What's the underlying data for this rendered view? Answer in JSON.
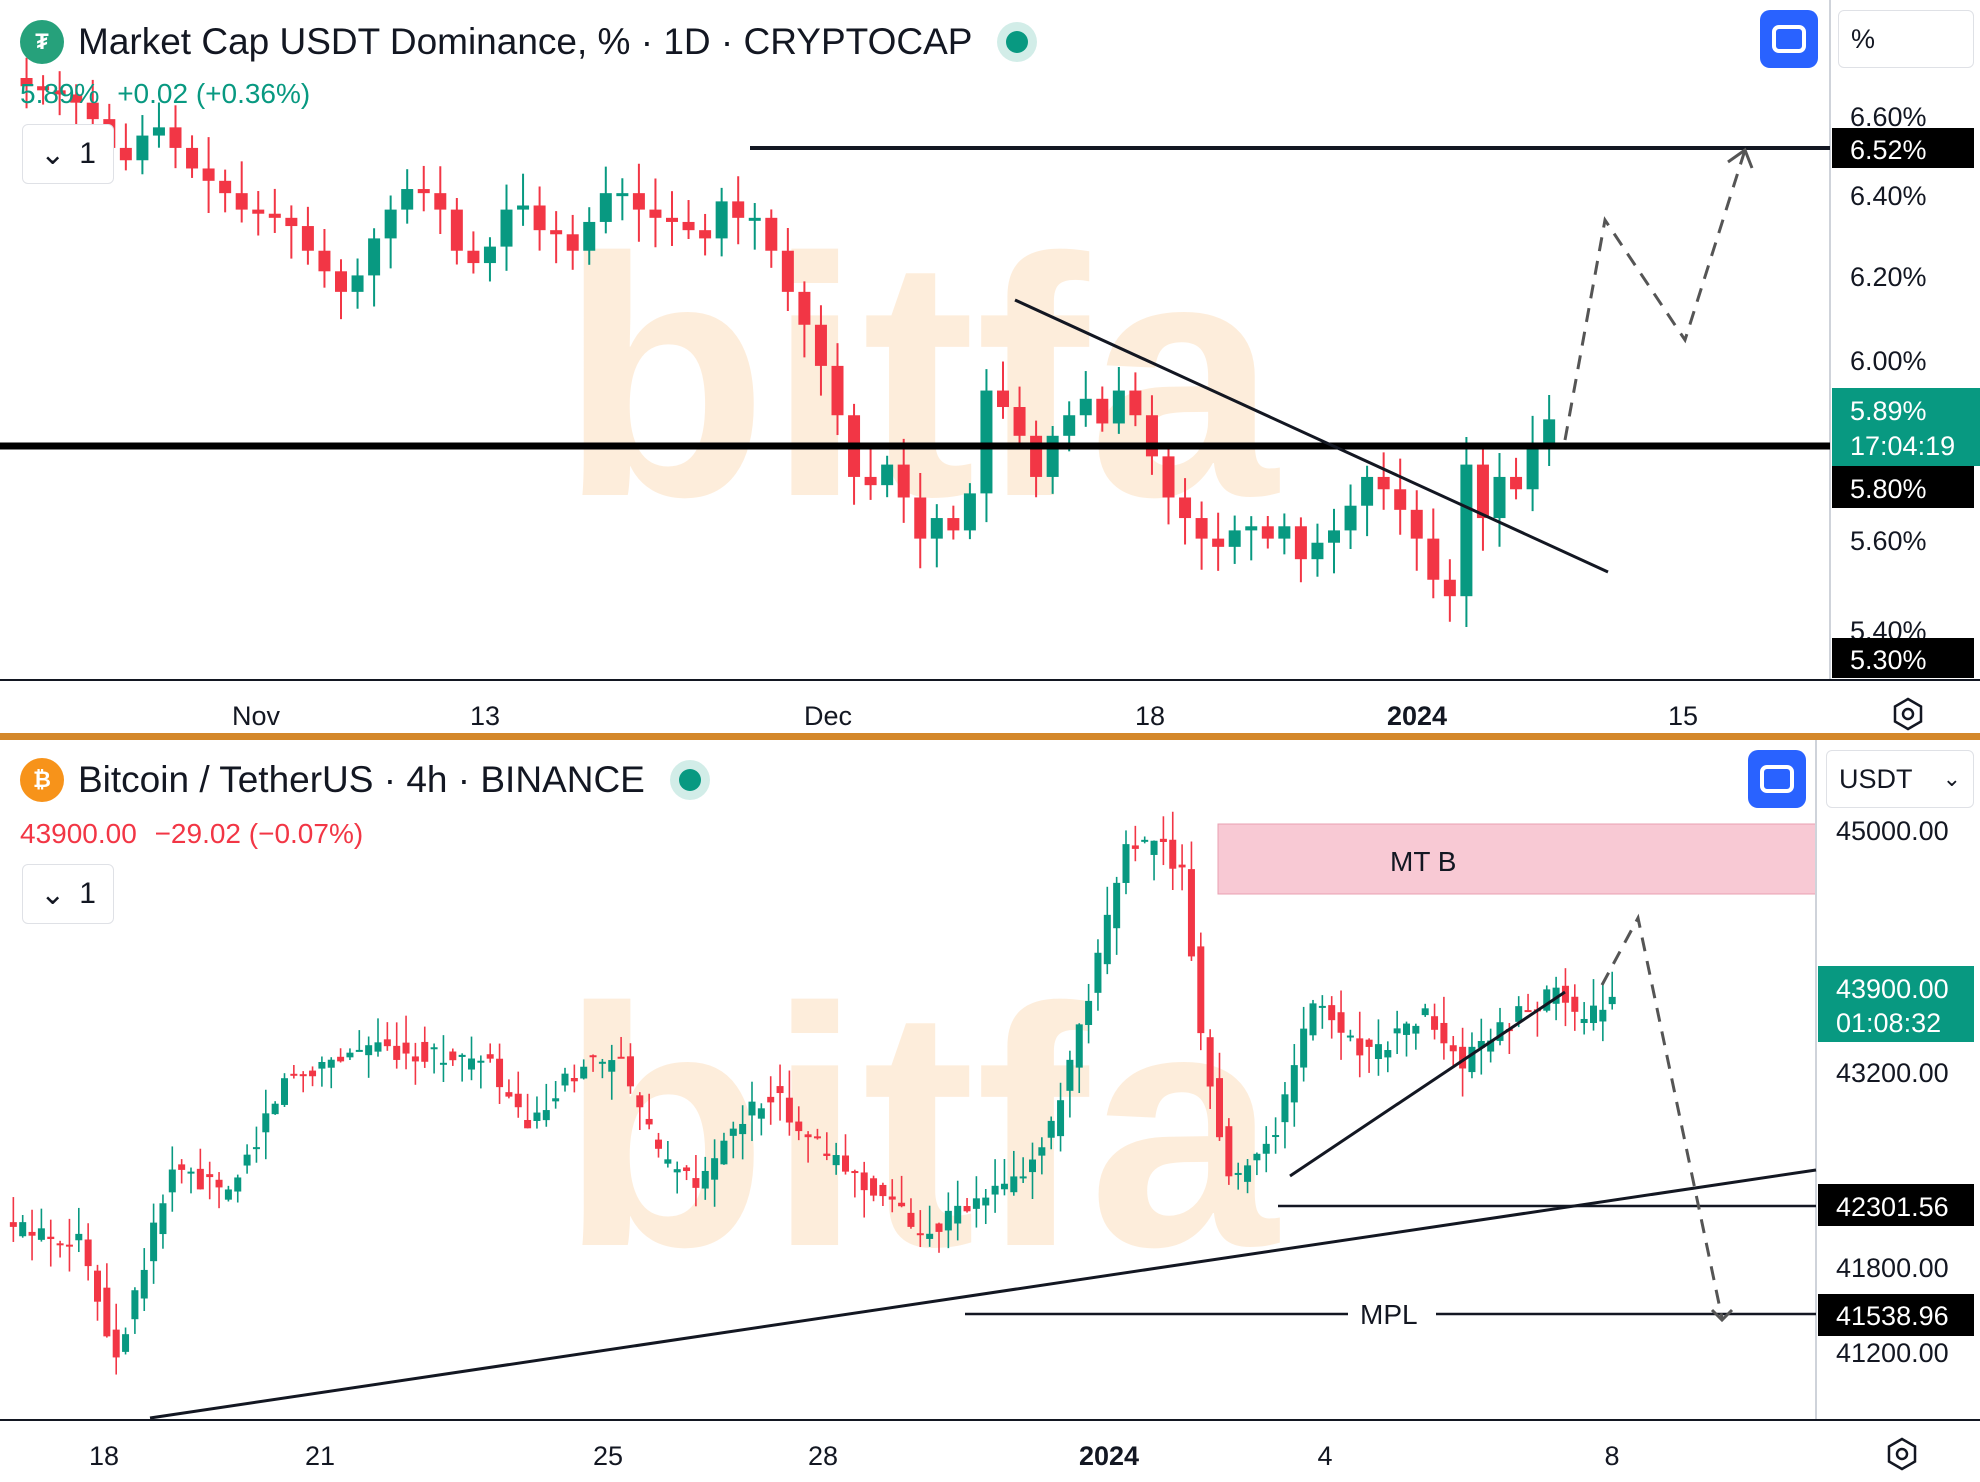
{
  "top": {
    "title": "Market Cap USDT Dominance, % · 1D · CRYPTOCAP",
    "logo_icon": "tether-icon",
    "quote_price": "5.89%",
    "quote_change": "+0.02 (+0.36%)",
    "interval_btn": "1",
    "unit": "%",
    "price_tag": "5.89%",
    "countdown": "17:04:19",
    "level_tags": [
      "6.52%",
      "5.80%",
      "5.30%"
    ],
    "watermark": "bitfa"
  },
  "bottom": {
    "title": "Bitcoin / TetherUS · 4h · BINANCE",
    "logo_icon": "bitcoin-icon",
    "quote_price": "43900.00",
    "quote_change": "−29.02 (−0.07%)",
    "interval_btn": "1",
    "unit": "USDT",
    "price_tag": "43900.00",
    "countdown": "01:08:32",
    "level_tags": [
      "42301.56",
      "41538.96"
    ],
    "zone_label": "MT B",
    "mpl_label": "MPL",
    "watermark": "bitfa"
  },
  "colors": {
    "up": "#089981",
    "down": "#f23645",
    "zone": "#f8c9d4",
    "divider": "#d4882a",
    "accent": "#2962ff"
  },
  "chart_data": [
    {
      "type": "candlestick",
      "title": "Market Cap USDT Dominance, % · 1D · CRYPTOCAP",
      "x_ticks": [
        "Nov",
        "13",
        "Dec",
        "18",
        "2024",
        "15"
      ],
      "y_ticks": [
        "6.60%",
        "6.40%",
        "6.20%",
        "6.00%",
        "5.60%",
        "5.40%"
      ],
      "ylim": [
        5.3,
        6.7
      ],
      "levels": [
        6.52,
        5.8,
        5.3
      ],
      "last_price": 5.89,
      "series_closes": [
        6.72,
        6.7,
        6.69,
        6.68,
        6.66,
        6.62,
        6.55,
        6.52,
        6.58,
        6.6,
        6.55,
        6.5,
        6.47,
        6.44,
        6.4,
        6.39,
        6.38,
        6.36,
        6.3,
        6.25,
        6.2,
        6.24,
        6.33,
        6.4,
        6.45,
        6.44,
        6.4,
        6.3,
        6.27,
        6.31,
        6.4,
        6.41,
        6.35,
        6.34,
        6.3,
        6.37,
        6.44,
        6.44,
        6.4,
        6.38,
        6.37,
        6.35,
        6.33,
        6.42,
        6.38,
        6.38,
        6.3,
        6.2,
        6.12,
        6.02,
        5.9,
        5.75,
        5.73,
        5.78,
        5.7,
        5.6,
        5.65,
        5.62,
        5.71,
        5.96,
        5.92,
        5.85,
        5.75,
        5.85,
        5.9,
        5.94,
        5.88,
        5.96,
        5.9,
        5.8,
        5.7,
        5.65,
        5.6,
        5.58,
        5.62,
        5.63,
        5.6,
        5.63,
        5.55,
        5.59,
        5.62,
        5.68,
        5.75,
        5.72,
        5.67,
        5.6,
        5.5,
        5.46,
        5.78,
        5.65,
        5.75,
        5.72,
        5.82,
        5.89
      ],
      "projection": [
        5.89,
        6.35,
        6.05,
        6.52
      ],
      "trendline": {
        "from": [
          5.98
        ],
        "to": [
          5.52
        ]
      }
    },
    {
      "type": "candlestick",
      "title": "Bitcoin / TetherUS · 4h · BINANCE",
      "x_ticks": [
        "18",
        "21",
        "25",
        "28",
        "2024",
        "4",
        "8"
      ],
      "y_ticks": [
        "45000.00",
        "43200.00",
        "41800.00",
        "41200.00"
      ],
      "ylim": [
        40800,
        45600
      ],
      "levels": [
        42301.56,
        41538.96
      ],
      "zone": {
        "label": "MT B",
        "from": 44550,
        "to": 45050
      },
      "last_price": 43900,
      "projection": [
        43900,
        44400,
        41600
      ],
      "trendlines": [
        "ascending support",
        "short-term rising"
      ]
    }
  ]
}
